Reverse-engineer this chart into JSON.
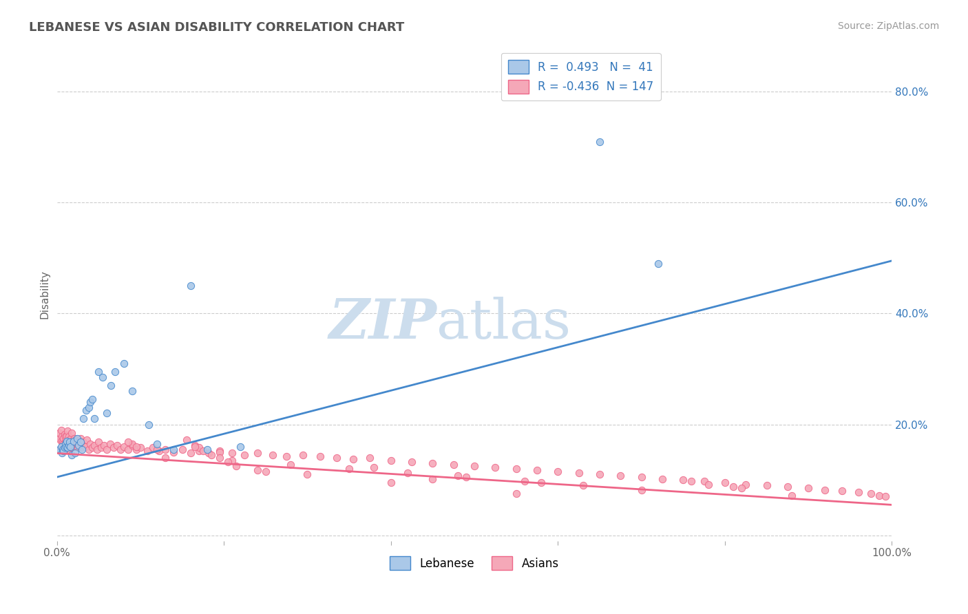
{
  "title": "LEBANESE VS ASIAN DISABILITY CORRELATION CHART",
  "source_text": "Source: ZipAtlas.com",
  "ylabel": "Disability",
  "xlim": [
    0.0,
    1.0
  ],
  "ylim": [
    -0.01,
    0.88
  ],
  "xticks": [
    0.0,
    0.2,
    0.4,
    0.6,
    0.8,
    1.0
  ],
  "xticklabels": [
    "0.0%",
    "",
    "",
    "",
    "",
    "100.0%"
  ],
  "ytick_positions": [
    0.0,
    0.2,
    0.4,
    0.6,
    0.8
  ],
  "ytick_labels": [
    "",
    "20.0%",
    "40.0%",
    "60.0%",
    "80.0%"
  ],
  "title_color": "#555555",
  "source_color": "#999999",
  "background_color": "#ffffff",
  "grid_color": "#cccccc",
  "lebanese_color": "#aac8e8",
  "asian_color": "#f5a8b8",
  "lebanese_line_color": "#4488cc",
  "asian_line_color": "#ee6688",
  "legend_R_color": "#3377bb",
  "R_lebanese": 0.493,
  "N_lebanese": 41,
  "R_asian": -0.436,
  "N_asian": 147,
  "watermark_zip": "ZIP",
  "watermark_atlas": "atlas",
  "watermark_color": "#ccdded",
  "leb_line_start_y": 0.105,
  "leb_line_end_y": 0.495,
  "asian_line_start_y": 0.148,
  "asian_line_end_y": 0.055,
  "lebanese_scatter_x": [
    0.003,
    0.005,
    0.006,
    0.007,
    0.008,
    0.009,
    0.01,
    0.011,
    0.012,
    0.013,
    0.014,
    0.015,
    0.016,
    0.018,
    0.02,
    0.022,
    0.024,
    0.026,
    0.028,
    0.03,
    0.032,
    0.035,
    0.038,
    0.04,
    0.042,
    0.045,
    0.05,
    0.055,
    0.06,
    0.065,
    0.07,
    0.08,
    0.09,
    0.11,
    0.12,
    0.14,
    0.16,
    0.18,
    0.22,
    0.65,
    0.72
  ],
  "lebanese_scatter_y": [
    0.155,
    0.16,
    0.148,
    0.155,
    0.152,
    0.158,
    0.165,
    0.16,
    0.17,
    0.158,
    0.162,
    0.168,
    0.16,
    0.145,
    0.17,
    0.148,
    0.175,
    0.162,
    0.168,
    0.155,
    0.21,
    0.225,
    0.23,
    0.24,
    0.245,
    0.21,
    0.295,
    0.285,
    0.22,
    0.27,
    0.295,
    0.31,
    0.26,
    0.2,
    0.165,
    0.155,
    0.45,
    0.155,
    0.16,
    0.71,
    0.49
  ],
  "asian_scatter_x": [
    0.002,
    0.003,
    0.004,
    0.005,
    0.005,
    0.006,
    0.006,
    0.007,
    0.007,
    0.008,
    0.008,
    0.009,
    0.009,
    0.01,
    0.01,
    0.011,
    0.011,
    0.012,
    0.012,
    0.013,
    0.013,
    0.014,
    0.014,
    0.015,
    0.015,
    0.016,
    0.017,
    0.017,
    0.018,
    0.018,
    0.019,
    0.02,
    0.021,
    0.022,
    0.023,
    0.024,
    0.025,
    0.026,
    0.027,
    0.028,
    0.029,
    0.03,
    0.032,
    0.034,
    0.036,
    0.038,
    0.04,
    0.042,
    0.045,
    0.048,
    0.05,
    0.053,
    0.056,
    0.06,
    0.064,
    0.068,
    0.072,
    0.076,
    0.08,
    0.085,
    0.09,
    0.095,
    0.1,
    0.108,
    0.115,
    0.122,
    0.13,
    0.14,
    0.15,
    0.16,
    0.17,
    0.182,
    0.195,
    0.21,
    0.225,
    0.24,
    0.258,
    0.275,
    0.295,
    0.315,
    0.335,
    0.355,
    0.375,
    0.4,
    0.425,
    0.45,
    0.475,
    0.5,
    0.525,
    0.55,
    0.575,
    0.6,
    0.625,
    0.65,
    0.675,
    0.7,
    0.725,
    0.75,
    0.775,
    0.8,
    0.825,
    0.85,
    0.875,
    0.9,
    0.92,
    0.94,
    0.96,
    0.975,
    0.985,
    0.992,
    0.13,
    0.21,
    0.28,
    0.35,
    0.42,
    0.49,
    0.56,
    0.63,
    0.7,
    0.195,
    0.165,
    0.24,
    0.17,
    0.185,
    0.155,
    0.175,
    0.195,
    0.205,
    0.215,
    0.165,
    0.58,
    0.48,
    0.38,
    0.09,
    0.12,
    0.88,
    0.82,
    0.76,
    0.095,
    0.085,
    0.78,
    0.81,
    0.25,
    0.3,
    0.4,
    0.55,
    0.45
  ],
  "asian_scatter_y": [
    0.175,
    0.185,
    0.155,
    0.17,
    0.19,
    0.16,
    0.178,
    0.168,
    0.158,
    0.175,
    0.165,
    0.182,
    0.155,
    0.168,
    0.178,
    0.158,
    0.172,
    0.162,
    0.18,
    0.17,
    0.188,
    0.162,
    0.178,
    0.155,
    0.172,
    0.165,
    0.175,
    0.158,
    0.17,
    0.185,
    0.162,
    0.168,
    0.175,
    0.16,
    0.172,
    0.165,
    0.158,
    0.17,
    0.162,
    0.175,
    0.165,
    0.158,
    0.168,
    0.16,
    0.172,
    0.155,
    0.165,
    0.158,
    0.162,
    0.155,
    0.168,
    0.158,
    0.162,
    0.155,
    0.165,
    0.158,
    0.162,
    0.155,
    0.16,
    0.155,
    0.162,
    0.155,
    0.158,
    0.152,
    0.158,
    0.152,
    0.155,
    0.15,
    0.155,
    0.148,
    0.152,
    0.148,
    0.152,
    0.148,
    0.145,
    0.148,
    0.145,
    0.142,
    0.145,
    0.142,
    0.14,
    0.138,
    0.14,
    0.135,
    0.132,
    0.13,
    0.128,
    0.125,
    0.122,
    0.12,
    0.118,
    0.115,
    0.112,
    0.11,
    0.108,
    0.105,
    0.102,
    0.1,
    0.098,
    0.095,
    0.092,
    0.09,
    0.088,
    0.085,
    0.082,
    0.08,
    0.078,
    0.075,
    0.072,
    0.07,
    0.14,
    0.135,
    0.128,
    0.12,
    0.112,
    0.105,
    0.098,
    0.09,
    0.082,
    0.15,
    0.162,
    0.118,
    0.158,
    0.145,
    0.172,
    0.152,
    0.14,
    0.132,
    0.125,
    0.16,
    0.095,
    0.108,
    0.122,
    0.165,
    0.155,
    0.072,
    0.085,
    0.098,
    0.16,
    0.168,
    0.092,
    0.088,
    0.115,
    0.11,
    0.095,
    0.075,
    0.102
  ]
}
